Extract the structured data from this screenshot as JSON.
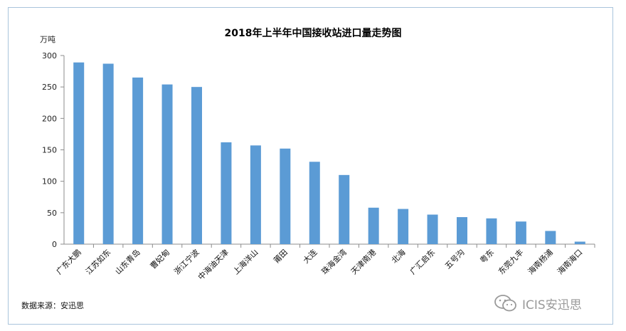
{
  "chart_data": {
    "type": "bar",
    "title": "2018年上半年中国接收站进口量走势图",
    "ylabel": "万吨",
    "xlabel": "",
    "ylim": [
      0,
      300
    ],
    "yticks": [
      0,
      50,
      100,
      150,
      200,
      250,
      300
    ],
    "grid": false,
    "color": "#5b9bd5",
    "categories": [
      "广东大鹏",
      "江苏如东",
      "山东青岛",
      "曹妃甸",
      "浙江宁波",
      "中海油天津",
      "上海洋山",
      "莆田",
      "大连",
      "珠海金湾",
      "天津南港",
      "北海",
      "广汇启东",
      "五号沟",
      "粤东",
      "东莞九丰",
      "海南杨浦",
      "海南海口"
    ],
    "values": [
      289,
      287,
      265,
      254,
      250,
      162,
      157,
      152,
      131,
      110,
      58,
      56,
      47,
      43,
      41,
      36,
      21,
      4
    ]
  },
  "footer": {
    "source": "数据来源：安迅思",
    "watermark": "ICIS安迅思"
  }
}
